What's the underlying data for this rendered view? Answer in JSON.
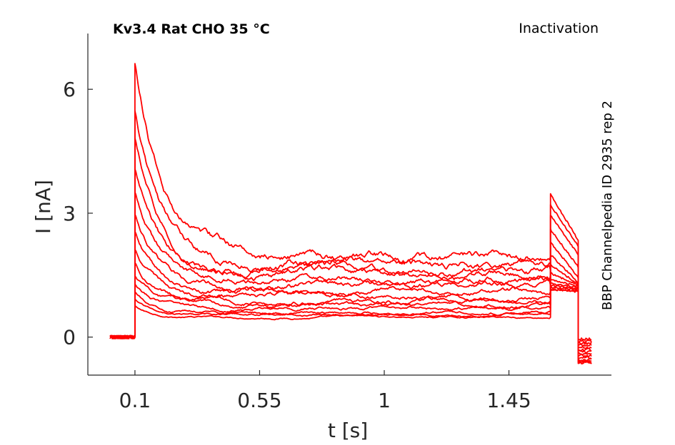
{
  "chart_data": {
    "type": "line",
    "title": "Kv3.4  Rat  CHO  35 °C",
    "protocol": "Inactivation",
    "side_note": "BBP Channelpedia ID 2935 rep 2",
    "xlabel": "t [s]",
    "ylabel": "I [nA]",
    "xlim": [
      -0.07,
      1.82
    ],
    "ylim": [
      -0.92,
      7.35
    ],
    "xticks": [
      0.1,
      0.55,
      1,
      1.45
    ],
    "xtick_labels": [
      "0.1",
      "0.55",
      "1",
      "1.45"
    ],
    "yticks": [
      0,
      3,
      6
    ],
    "ytick_labels": [
      "0",
      "3",
      "6"
    ],
    "grid": false,
    "legend": "none",
    "color": "#ff0000",
    "pulse_start": 0.1,
    "pulse_end": 1.6,
    "record_end": 1.7,
    "series": [
      {
        "peak": 0.75,
        "steady": 0.48,
        "tail_peak": 1.15,
        "tail_end": 1.1,
        "after": -0.05
      },
      {
        "peak": 0.92,
        "steady": 0.55,
        "tail_peak": 1.15,
        "tail_end": 1.12,
        "after": -0.1
      },
      {
        "peak": 1.08,
        "steady": 0.62,
        "tail_peak": 1.2,
        "tail_end": 1.15,
        "after": -0.15
      },
      {
        "peak": 1.28,
        "steady": 0.7,
        "tail_peak": 1.25,
        "tail_end": 1.18,
        "after": -0.2
      },
      {
        "peak": 1.5,
        "steady": 0.78,
        "tail_peak": 1.3,
        "tail_end": 1.2,
        "after": -0.25
      },
      {
        "peak": 1.8,
        "steady": 0.88,
        "tail_peak": 1.4,
        "tail_end": 1.22,
        "after": -0.3
      },
      {
        "peak": 2.15,
        "steady": 0.98,
        "tail_peak": 1.55,
        "tail_end": 1.25,
        "after": -0.35
      },
      {
        "peak": 2.55,
        "steady": 1.1,
        "tail_peak": 1.75,
        "tail_end": 1.28,
        "after": -0.4
      },
      {
        "peak": 3.0,
        "steady": 1.25,
        "tail_peak": 2.0,
        "tail_end": 1.32,
        "after": -0.45
      },
      {
        "peak": 3.5,
        "steady": 1.38,
        "tail_peak": 2.3,
        "tail_end": 1.45,
        "after": -0.5
      },
      {
        "peak": 4.1,
        "steady": 1.5,
        "tail_peak": 2.6,
        "tail_end": 1.7,
        "after": -0.55
      },
      {
        "peak": 4.8,
        "steady": 1.62,
        "tail_peak": 2.95,
        "tail_end": 2.0,
        "after": -0.58
      },
      {
        "peak": 5.5,
        "steady": 1.75,
        "tail_peak": 3.2,
        "tail_end": 2.2,
        "after": -0.6
      },
      {
        "peak": 6.6,
        "steady": 1.95,
        "tail_peak": 3.45,
        "tail_end": 2.35,
        "after": -0.62
      }
    ]
  }
}
